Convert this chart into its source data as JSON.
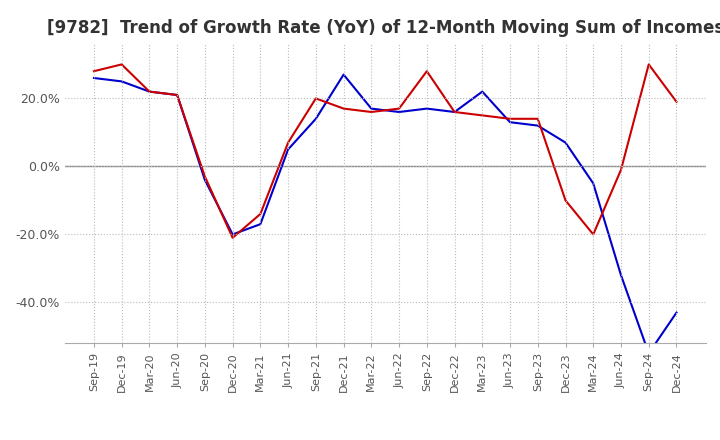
{
  "title": "[9782]  Trend of Growth Rate (YoY) of 12-Month Moving Sum of Incomes",
  "x_labels": [
    "Sep-19",
    "Dec-19",
    "Mar-20",
    "Jun-20",
    "Sep-20",
    "Dec-20",
    "Mar-21",
    "Jun-21",
    "Sep-21",
    "Dec-21",
    "Mar-22",
    "Jun-22",
    "Sep-22",
    "Dec-22",
    "Mar-23",
    "Jun-23",
    "Sep-23",
    "Dec-23",
    "Mar-24",
    "Jun-24",
    "Sep-24",
    "Dec-24"
  ],
  "ordinary_income": [
    0.26,
    0.25,
    0.22,
    0.21,
    -0.04,
    -0.2,
    -0.17,
    0.05,
    0.14,
    0.27,
    0.17,
    0.16,
    0.17,
    0.16,
    0.22,
    0.13,
    0.12,
    0.07,
    -0.05,
    -0.32,
    -0.55,
    -0.43
  ],
  "net_income": [
    0.28,
    0.3,
    0.22,
    0.21,
    -0.03,
    -0.21,
    -0.14,
    0.07,
    0.2,
    0.17,
    0.16,
    0.17,
    0.28,
    0.16,
    0.15,
    0.14,
    0.14,
    -0.1,
    -0.2,
    -0.01,
    0.3,
    0.19
  ],
  "ordinary_color": "#0000cc",
  "net_color": "#cc0000",
  "ylim": [
    -0.52,
    0.36
  ],
  "yticks": [
    -0.4,
    -0.2,
    0.0,
    0.2
  ],
  "background_color": "#ffffff",
  "grid_color": "#bbbbbb",
  "title_fontsize": 12
}
